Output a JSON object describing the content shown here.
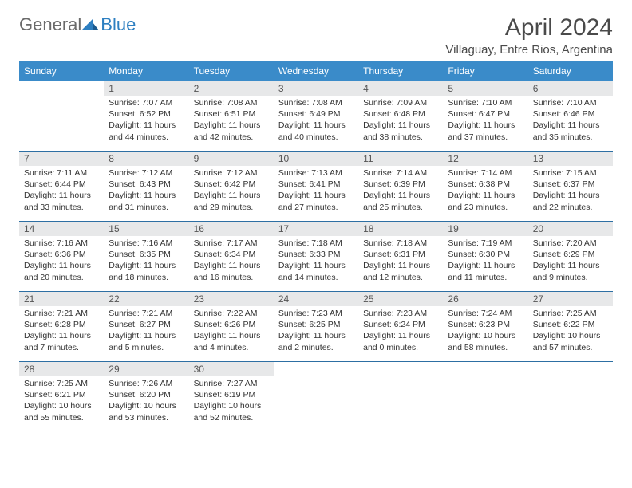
{
  "logo": {
    "general": "General",
    "blue": "Blue"
  },
  "title": "April 2024",
  "location": "Villaguay, Entre Rios, Argentina",
  "colors": {
    "header_bg": "#3a8bc9",
    "header_text": "#ffffff",
    "daynum_bg": "#e7e8e9",
    "row_border": "#2d6fa3",
    "logo_gray": "#6a6a6a",
    "logo_blue": "#2d7fc1"
  },
  "weekdays": [
    "Sunday",
    "Monday",
    "Tuesday",
    "Wednesday",
    "Thursday",
    "Friday",
    "Saturday"
  ],
  "grid": [
    [
      {
        "empty": true
      },
      {
        "day": "1",
        "sunrise": "Sunrise: 7:07 AM",
        "sunset": "Sunset: 6:52 PM",
        "daylight": "Daylight: 11 hours and 44 minutes."
      },
      {
        "day": "2",
        "sunrise": "Sunrise: 7:08 AM",
        "sunset": "Sunset: 6:51 PM",
        "daylight": "Daylight: 11 hours and 42 minutes."
      },
      {
        "day": "3",
        "sunrise": "Sunrise: 7:08 AM",
        "sunset": "Sunset: 6:49 PM",
        "daylight": "Daylight: 11 hours and 40 minutes."
      },
      {
        "day": "4",
        "sunrise": "Sunrise: 7:09 AM",
        "sunset": "Sunset: 6:48 PM",
        "daylight": "Daylight: 11 hours and 38 minutes."
      },
      {
        "day": "5",
        "sunrise": "Sunrise: 7:10 AM",
        "sunset": "Sunset: 6:47 PM",
        "daylight": "Daylight: 11 hours and 37 minutes."
      },
      {
        "day": "6",
        "sunrise": "Sunrise: 7:10 AM",
        "sunset": "Sunset: 6:46 PM",
        "daylight": "Daylight: 11 hours and 35 minutes."
      }
    ],
    [
      {
        "day": "7",
        "sunrise": "Sunrise: 7:11 AM",
        "sunset": "Sunset: 6:44 PM",
        "daylight": "Daylight: 11 hours and 33 minutes."
      },
      {
        "day": "8",
        "sunrise": "Sunrise: 7:12 AM",
        "sunset": "Sunset: 6:43 PM",
        "daylight": "Daylight: 11 hours and 31 minutes."
      },
      {
        "day": "9",
        "sunrise": "Sunrise: 7:12 AM",
        "sunset": "Sunset: 6:42 PM",
        "daylight": "Daylight: 11 hours and 29 minutes."
      },
      {
        "day": "10",
        "sunrise": "Sunrise: 7:13 AM",
        "sunset": "Sunset: 6:41 PM",
        "daylight": "Daylight: 11 hours and 27 minutes."
      },
      {
        "day": "11",
        "sunrise": "Sunrise: 7:14 AM",
        "sunset": "Sunset: 6:39 PM",
        "daylight": "Daylight: 11 hours and 25 minutes."
      },
      {
        "day": "12",
        "sunrise": "Sunrise: 7:14 AM",
        "sunset": "Sunset: 6:38 PM",
        "daylight": "Daylight: 11 hours and 23 minutes."
      },
      {
        "day": "13",
        "sunrise": "Sunrise: 7:15 AM",
        "sunset": "Sunset: 6:37 PM",
        "daylight": "Daylight: 11 hours and 22 minutes."
      }
    ],
    [
      {
        "day": "14",
        "sunrise": "Sunrise: 7:16 AM",
        "sunset": "Sunset: 6:36 PM",
        "daylight": "Daylight: 11 hours and 20 minutes."
      },
      {
        "day": "15",
        "sunrise": "Sunrise: 7:16 AM",
        "sunset": "Sunset: 6:35 PM",
        "daylight": "Daylight: 11 hours and 18 minutes."
      },
      {
        "day": "16",
        "sunrise": "Sunrise: 7:17 AM",
        "sunset": "Sunset: 6:34 PM",
        "daylight": "Daylight: 11 hours and 16 minutes."
      },
      {
        "day": "17",
        "sunrise": "Sunrise: 7:18 AM",
        "sunset": "Sunset: 6:33 PM",
        "daylight": "Daylight: 11 hours and 14 minutes."
      },
      {
        "day": "18",
        "sunrise": "Sunrise: 7:18 AM",
        "sunset": "Sunset: 6:31 PM",
        "daylight": "Daylight: 11 hours and 12 minutes."
      },
      {
        "day": "19",
        "sunrise": "Sunrise: 7:19 AM",
        "sunset": "Sunset: 6:30 PM",
        "daylight": "Daylight: 11 hours and 11 minutes."
      },
      {
        "day": "20",
        "sunrise": "Sunrise: 7:20 AM",
        "sunset": "Sunset: 6:29 PM",
        "daylight": "Daylight: 11 hours and 9 minutes."
      }
    ],
    [
      {
        "day": "21",
        "sunrise": "Sunrise: 7:21 AM",
        "sunset": "Sunset: 6:28 PM",
        "daylight": "Daylight: 11 hours and 7 minutes."
      },
      {
        "day": "22",
        "sunrise": "Sunrise: 7:21 AM",
        "sunset": "Sunset: 6:27 PM",
        "daylight": "Daylight: 11 hours and 5 minutes."
      },
      {
        "day": "23",
        "sunrise": "Sunrise: 7:22 AM",
        "sunset": "Sunset: 6:26 PM",
        "daylight": "Daylight: 11 hours and 4 minutes."
      },
      {
        "day": "24",
        "sunrise": "Sunrise: 7:23 AM",
        "sunset": "Sunset: 6:25 PM",
        "daylight": "Daylight: 11 hours and 2 minutes."
      },
      {
        "day": "25",
        "sunrise": "Sunrise: 7:23 AM",
        "sunset": "Sunset: 6:24 PM",
        "daylight": "Daylight: 11 hours and 0 minutes."
      },
      {
        "day": "26",
        "sunrise": "Sunrise: 7:24 AM",
        "sunset": "Sunset: 6:23 PM",
        "daylight": "Daylight: 10 hours and 58 minutes."
      },
      {
        "day": "27",
        "sunrise": "Sunrise: 7:25 AM",
        "sunset": "Sunset: 6:22 PM",
        "daylight": "Daylight: 10 hours and 57 minutes."
      }
    ],
    [
      {
        "day": "28",
        "sunrise": "Sunrise: 7:25 AM",
        "sunset": "Sunset: 6:21 PM",
        "daylight": "Daylight: 10 hours and 55 minutes."
      },
      {
        "day": "29",
        "sunrise": "Sunrise: 7:26 AM",
        "sunset": "Sunset: 6:20 PM",
        "daylight": "Daylight: 10 hours and 53 minutes."
      },
      {
        "day": "30",
        "sunrise": "Sunrise: 7:27 AM",
        "sunset": "Sunset: 6:19 PM",
        "daylight": "Daylight: 10 hours and 52 minutes."
      },
      {
        "empty": true
      },
      {
        "empty": true
      },
      {
        "empty": true
      },
      {
        "empty": true
      }
    ]
  ]
}
